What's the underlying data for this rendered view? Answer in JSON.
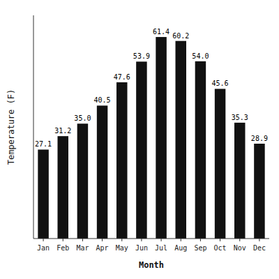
{
  "chart_data": {
    "type": "bar",
    "categories": [
      "Jan",
      "Feb",
      "Mar",
      "Apr",
      "May",
      "Jun",
      "Jul",
      "Aug",
      "Sep",
      "Oct",
      "Nov",
      "Dec"
    ],
    "values": [
      27.1,
      31.2,
      35.0,
      40.5,
      47.6,
      53.9,
      61.4,
      60.2,
      54.0,
      45.6,
      35.3,
      28.9
    ],
    "value_labels": [
      "27.1",
      "31.2",
      "35.0",
      "40.5",
      "47.6",
      "53.9",
      "61.4",
      "60.2",
      "54.0",
      "45.6",
      "35.3",
      "28.9"
    ],
    "color": "#111111",
    "xlabel": "Month",
    "ylabel": "Temperature (F)",
    "ylim": [
      0,
      68
    ],
    "grid": false,
    "data_labels": true,
    "tick_labels": "x"
  }
}
